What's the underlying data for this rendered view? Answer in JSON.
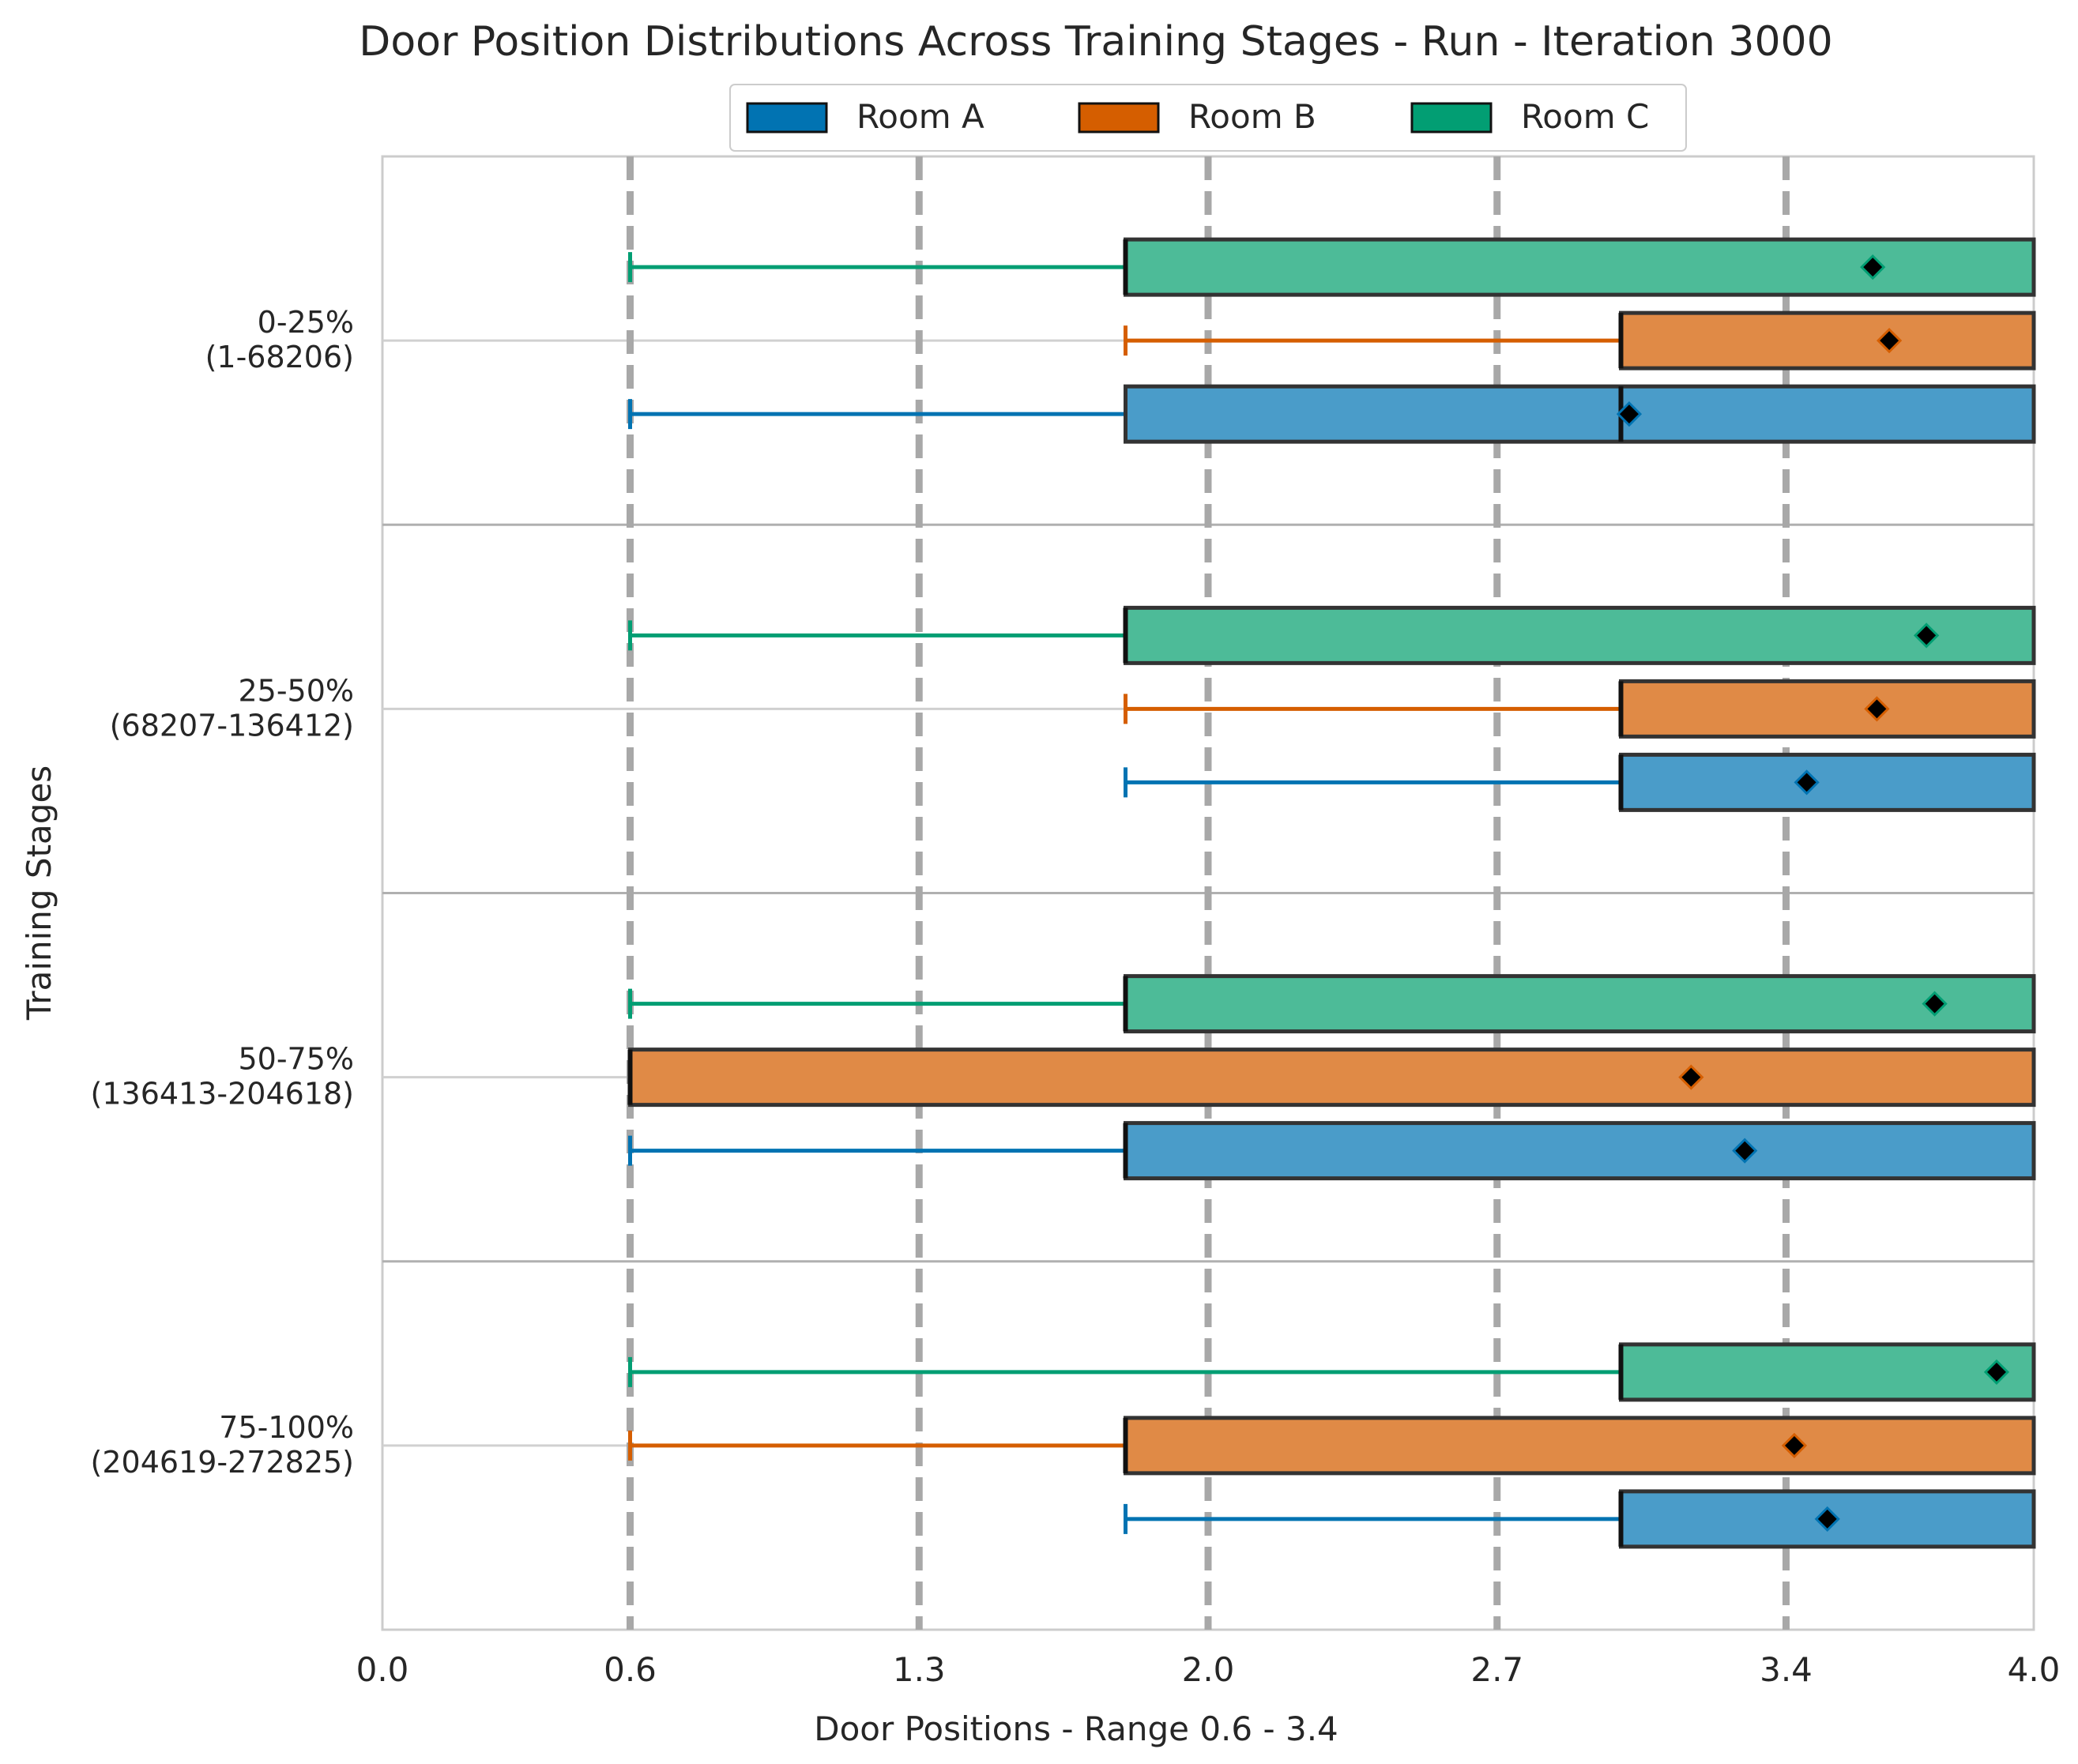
{
  "chart_data": {
    "type": "box",
    "title": "Door Position Distributions Across Training Stages - Run - Iteration 3000",
    "xlabel": "Door Positions - Range 0.6 - 3.4",
    "ylabel": "Training Stages",
    "xlim": [
      0.0,
      4.0
    ],
    "x_ticks": [
      "0.0",
      "0.6",
      "1.3",
      "2.0",
      "2.7",
      "3.4",
      "4.0"
    ],
    "reference_lines": [
      0.6,
      1.3,
      2.0,
      2.7,
      3.4
    ],
    "legend": {
      "placement": "top-center",
      "entries": [
        "Room A",
        "Room B",
        "Room C"
      ]
    },
    "colors": {
      "Room A": "#0173b2",
      "Room B": "#d55e00",
      "Room C": "#029e73"
    },
    "categories": [
      {
        "label_line1": "0-25%",
        "label_line2": "(1-68206)"
      },
      {
        "label_line1": "25-50%",
        "label_line2": "(68207-136412)"
      },
      {
        "label_line1": "50-75%",
        "label_line2": "(136413-204618)"
      },
      {
        "label_line1": "75-100%",
        "label_line2": "(204619-272825)"
      }
    ],
    "series": [
      {
        "name": "Room A",
        "boxes": [
          {
            "whisker_low": 0.6,
            "q1": 1.8,
            "median": 3.0,
            "q3": 4.0,
            "mean": 3.02
          },
          {
            "whisker_low": 1.8,
            "q1": 3.0,
            "median": 3.0,
            "q3": 4.0,
            "mean": 3.45
          },
          {
            "whisker_low": 0.6,
            "q1": 1.8,
            "median": 1.8,
            "q3": 4.0,
            "mean": 3.3
          },
          {
            "whisker_low": 1.8,
            "q1": 3.0,
            "median": 3.0,
            "q3": 4.0,
            "mean": 3.5
          }
        ]
      },
      {
        "name": "Room B",
        "boxes": [
          {
            "whisker_low": 1.8,
            "q1": 3.0,
            "median": 3.0,
            "q3": 4.0,
            "mean": 3.65
          },
          {
            "whisker_low": 1.8,
            "q1": 3.0,
            "median": 3.0,
            "q3": 4.0,
            "mean": 3.62
          },
          {
            "whisker_low": 0.6,
            "q1": 0.6,
            "median": 0.6,
            "q3": 4.0,
            "mean": 3.17
          },
          {
            "whisker_low": 0.6,
            "q1": 1.8,
            "median": 1.8,
            "q3": 4.0,
            "mean": 3.42
          }
        ]
      },
      {
        "name": "Room C",
        "boxes": [
          {
            "whisker_low": 0.6,
            "q1": 1.8,
            "median": 1.8,
            "q3": 4.0,
            "mean": 3.61
          },
          {
            "whisker_low": 0.6,
            "q1": 1.8,
            "median": 1.8,
            "q3": 4.0,
            "mean": 3.74
          },
          {
            "whisker_low": 0.6,
            "q1": 1.8,
            "median": 1.8,
            "q3": 4.0,
            "mean": 3.76
          },
          {
            "whisker_low": 0.6,
            "q1": 3.0,
            "median": 3.0,
            "q3": 4.0,
            "mean": 3.91
          }
        ]
      }
    ]
  }
}
